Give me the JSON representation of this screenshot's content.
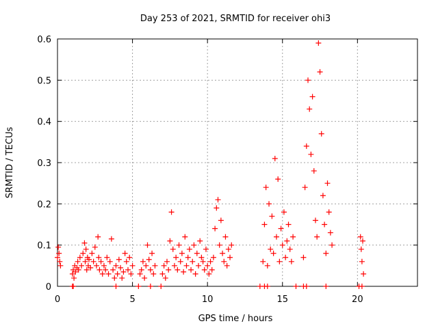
{
  "chart_data": {
    "type": "scatter",
    "title": "Day 253 of 2021, SRMTID for receiver ohi3",
    "xlabel": "GPS time / hours",
    "ylabel": "SRMTID / TECUs",
    "xlim": [
      0,
      24
    ],
    "ylim": [
      0,
      0.6
    ],
    "xticks": [
      0,
      5,
      10,
      15,
      20
    ],
    "xtick_labels": [
      "0",
      "5",
      "10",
      "15",
      "20"
    ],
    "yticks": [
      0,
      0.1,
      0.2,
      0.3,
      0.4,
      0.5,
      0.6
    ],
    "ytick_labels": [
      "0",
      "0.1",
      "0.2",
      "0.3",
      "0.4",
      "0.5",
      "0.6"
    ],
    "grid": true,
    "marker": "+",
    "color": "#ff0000",
    "series": [
      {
        "name": "ohi3",
        "x": [
          0.0,
          0.05,
          0.1,
          0.15,
          0.2,
          1.0,
          1.05,
          1.1,
          1.15,
          1.2,
          1.3,
          1.35,
          1.4,
          1.5,
          1.6,
          1.7,
          1.8,
          1.85,
          1.9,
          1.95,
          2.0,
          2.05,
          2.1,
          2.2,
          2.3,
          2.4,
          2.5,
          2.6,
          2.7,
          2.75,
          2.8,
          2.9,
          3.0,
          3.1,
          3.2,
          3.3,
          3.4,
          3.5,
          3.6,
          3.7,
          3.8,
          3.9,
          4.0,
          4.1,
          4.2,
          4.3,
          4.4,
          4.5,
          4.6,
          4.7,
          4.8,
          4.9,
          5.0,
          5.5,
          5.6,
          5.7,
          5.8,
          5.9,
          6.0,
          6.1,
          6.2,
          6.3,
          6.4,
          6.5,
          7.0,
          7.1,
          7.2,
          7.3,
          7.4,
          7.5,
          7.6,
          7.7,
          7.8,
          7.9,
          8.0,
          8.1,
          8.2,
          8.3,
          8.4,
          8.5,
          8.6,
          8.7,
          8.8,
          8.9,
          9.0,
          9.1,
          9.2,
          9.3,
          9.4,
          9.5,
          9.6,
          9.7,
          9.8,
          9.9,
          10.0,
          10.1,
          10.2,
          10.3,
          10.4,
          10.5,
          10.6,
          10.7,
          10.8,
          10.9,
          11.0,
          11.1,
          11.2,
          11.3,
          11.4,
          11.5,
          11.6,
          13.7,
          13.8,
          13.9,
          14.0,
          14.1,
          14.2,
          14.3,
          14.4,
          14.5,
          14.6,
          14.7,
          14.8,
          14.9,
          15.0,
          15.1,
          15.2,
          15.3,
          15.4,
          15.5,
          15.6,
          15.7,
          16.4,
          16.5,
          16.6,
          16.7,
          16.8,
          16.9,
          17.0,
          17.1,
          17.2,
          17.3,
          17.4,
          17.5,
          17.6,
          17.7,
          17.8,
          17.9,
          18.0,
          18.1,
          18.2,
          18.3,
          20.2,
          20.25,
          20.3,
          20.35,
          20.4
        ],
        "y": [
          0.07,
          0.095,
          0.08,
          0.06,
          0.05,
          0.03,
          0.04,
          0.02,
          0.05,
          0.035,
          0.045,
          0.06,
          0.04,
          0.07,
          0.05,
          0.08,
          0.105,
          0.06,
          0.09,
          0.04,
          0.07,
          0.05,
          0.065,
          0.045,
          0.08,
          0.06,
          0.095,
          0.05,
          0.12,
          0.07,
          0.04,
          0.06,
          0.03,
          0.05,
          0.04,
          0.07,
          0.03,
          0.06,
          0.115,
          0.04,
          0.02,
          0.05,
          0.03,
          0.065,
          0.045,
          0.02,
          0.035,
          0.08,
          0.06,
          0.04,
          0.07,
          0.03,
          0.05,
          0.03,
          0.04,
          0.06,
          0.02,
          0.05,
          0.1,
          0.065,
          0.04,
          0.08,
          0.03,
          0.05,
          0.03,
          0.05,
          0.02,
          0.06,
          0.04,
          0.11,
          0.18,
          0.09,
          0.05,
          0.07,
          0.04,
          0.1,
          0.06,
          0.08,
          0.035,
          0.12,
          0.05,
          0.07,
          0.09,
          0.04,
          0.06,
          0.1,
          0.03,
          0.08,
          0.05,
          0.11,
          0.07,
          0.06,
          0.04,
          0.09,
          0.05,
          0.03,
          0.06,
          0.04,
          0.07,
          0.14,
          0.19,
          0.21,
          0.1,
          0.16,
          0.08,
          0.06,
          0.12,
          0.05,
          0.09,
          0.07,
          0.1,
          0.06,
          0.15,
          0.24,
          0.05,
          0.2,
          0.09,
          0.17,
          0.08,
          0.31,
          0.12,
          0.26,
          0.06,
          0.14,
          0.1,
          0.18,
          0.07,
          0.11,
          0.15,
          0.09,
          0.06,
          0.12,
          0.07,
          0.24,
          0.34,
          0.5,
          0.43,
          0.32,
          0.46,
          0.28,
          0.16,
          0.12,
          0.59,
          0.52,
          0.37,
          0.22,
          0.15,
          0.08,
          0.25,
          0.18,
          0.13,
          0.1,
          0.12,
          0.09,
          0.06,
          0.11,
          0.03
        ],
        "zero_x": [
          1.0,
          1.05,
          3.9,
          5.4,
          6.2,
          6.9,
          13.5,
          13.8,
          14.0,
          15.9,
          16.4,
          16.6,
          17.9,
          20.1,
          20.3
        ]
      }
    ]
  }
}
